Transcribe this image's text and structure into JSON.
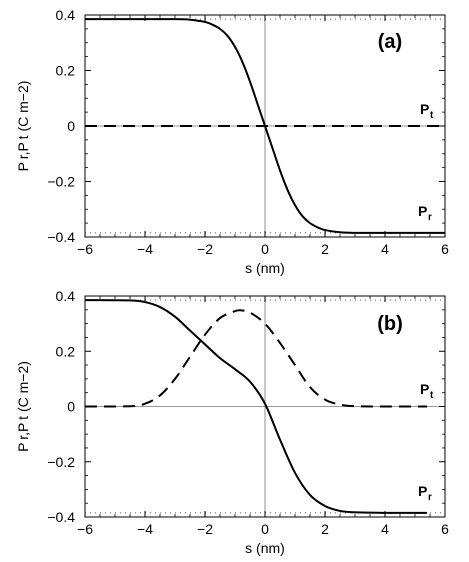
{
  "chart_data": [
    {
      "type": "line",
      "panel_label": "(a)",
      "xlabel": "s (nm)",
      "ylabel": "P r,P t (C m−2)",
      "xlim": [
        -6,
        6
      ],
      "ylim": [
        -0.4,
        0.4
      ],
      "x_ticks": [
        -6,
        -4,
        -2,
        0,
        2,
        4,
        6
      ],
      "y_ticks": [
        -0.4,
        -0.2,
        0,
        0.2,
        0.4
      ],
      "x_tick_labels": [
        "−6",
        "−4",
        "−2",
        "0",
        "2",
        "4",
        "6"
      ],
      "y_tick_labels": [
        "−0.4",
        "−0.2",
        "0",
        "0.2",
        "0.4"
      ],
      "dotted_levels": [
        0.385,
        -0.385
      ],
      "zero_lines": true,
      "series": [
        {
          "name": "P_r",
          "label_main": "P",
          "label_sub": "r",
          "style": "solid",
          "x": [
            -6,
            -3,
            -2.5,
            -2,
            -1.75,
            -1.5,
            -1.25,
            -1,
            -0.75,
            -0.5,
            -0.25,
            0,
            0.25,
            0.5,
            0.75,
            1,
            1.25,
            1.5,
            1.75,
            2,
            2.5,
            3,
            4,
            6
          ],
          "y": [
            0.385,
            0.385,
            0.383,
            0.375,
            0.365,
            0.35,
            0.325,
            0.285,
            0.23,
            0.16,
            0.08,
            0,
            -0.08,
            -0.16,
            -0.23,
            -0.285,
            -0.325,
            -0.35,
            -0.365,
            -0.375,
            -0.383,
            -0.385,
            -0.385,
            -0.385
          ]
        },
        {
          "name": "P_t",
          "label_main": "P",
          "label_sub": "t",
          "style": "dashed",
          "x": [
            -6,
            6
          ],
          "y": [
            0,
            0
          ]
        }
      ]
    },
    {
      "type": "line",
      "panel_label": "(b)",
      "xlabel": "s (nm)",
      "ylabel": "P r,P t (C m−2)",
      "xlim": [
        -6,
        6
      ],
      "ylim": [
        -0.4,
        0.4
      ],
      "x_ticks": [
        -6,
        -4,
        -2,
        0,
        2,
        4,
        6
      ],
      "y_ticks": [
        -0.4,
        -0.2,
        0,
        0.2,
        0.4
      ],
      "x_tick_labels": [
        "−6",
        "−4",
        "−2",
        "0",
        "2",
        "4",
        "6"
      ],
      "y_tick_labels": [
        "−0.4",
        "−0.2",
        "0",
        "0.2",
        "0.4"
      ],
      "dotted_levels": [
        0.385,
        -0.385
      ],
      "zero_lines": true,
      "series": [
        {
          "name": "P_r",
          "label_main": "P",
          "label_sub": "r",
          "style": "solid",
          "x": [
            -6,
            -4.5,
            -4,
            -3.5,
            -3.0,
            -2.5,
            -2.0,
            -1.5,
            -1.0,
            -0.5,
            0,
            0.5,
            1.0,
            1.5,
            2.0,
            2.5,
            3.0,
            4.0,
            5.4
          ],
          "y": [
            0.385,
            0.384,
            0.378,
            0.36,
            0.325,
            0.275,
            0.225,
            0.175,
            0.135,
            0.09,
            0.01,
            -0.12,
            -0.24,
            -0.32,
            -0.36,
            -0.378,
            -0.383,
            -0.385,
            -0.385
          ]
        },
        {
          "name": "P_t",
          "label_main": "P",
          "label_sub": "t",
          "style": "dashed",
          "x": [
            -6,
            -4.5,
            -4.0,
            -3.5,
            -3.0,
            -2.5,
            -2.0,
            -1.5,
            -1.0,
            -0.8,
            -0.5,
            0,
            0.5,
            1.0,
            1.5,
            2.0,
            2.5,
            3.0,
            4.0,
            5.4
          ],
          "y": [
            0,
            0.001,
            0.01,
            0.04,
            0.1,
            0.18,
            0.26,
            0.32,
            0.345,
            0.348,
            0.34,
            0.3,
            0.23,
            0.15,
            0.07,
            0.025,
            0.007,
            0.001,
            0,
            0
          ]
        }
      ]
    }
  ]
}
